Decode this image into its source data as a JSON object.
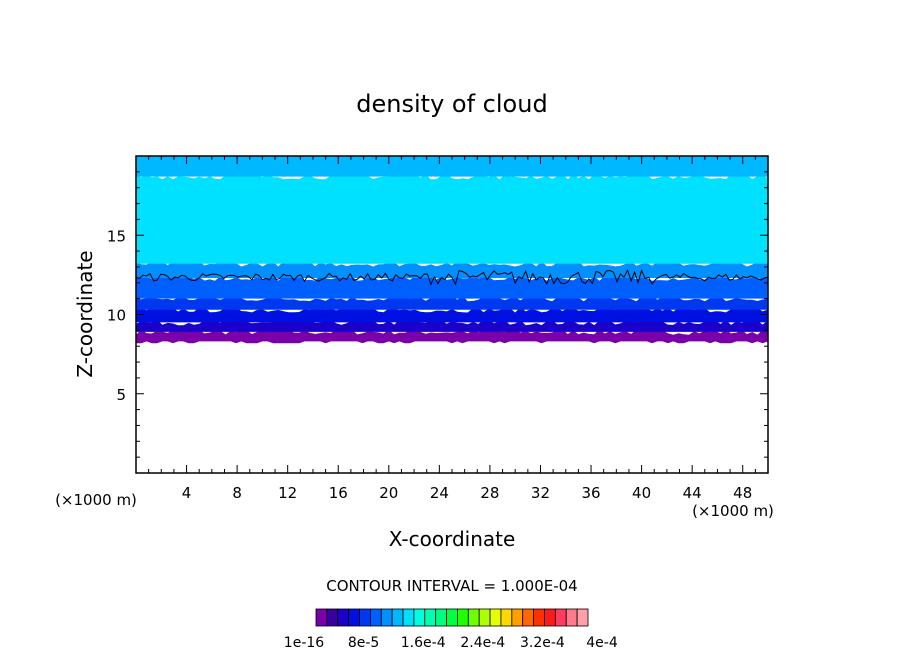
{
  "chart_data": {
    "type": "heatmap",
    "title": "density of cloud",
    "xlabel": "X-coordinate",
    "ylabel": "Z-coordinate",
    "x_unit_label": "(×1000 m)",
    "z_unit_label": "(×1000 m)",
    "xlim": [
      0,
      50
    ],
    "ylim": [
      0,
      20
    ],
    "x_ticks": [
      "4",
      "8",
      "12",
      "16",
      "20",
      "24",
      "28",
      "32",
      "36",
      "40",
      "44",
      "48"
    ],
    "y_ticks": [
      "5",
      "10",
      "15"
    ],
    "contour_interval_text": "CONTOUR INTERVAL = 1.000E-04",
    "colorbar_labels": [
      "1e-16",
      "8e-5",
      "1.6e-4",
      "2.4e-4",
      "3.2e-4",
      "4e-4"
    ],
    "colorbar_colors": [
      "#7a00aa",
      "#3800a0",
      "#1a00c8",
      "#0010e0",
      "#0038f0",
      "#0060ff",
      "#0090ff",
      "#00b8ff",
      "#00e0ff",
      "#00ffe0",
      "#00ffb0",
      "#00ff80",
      "#00ff40",
      "#20ff00",
      "#70ff00",
      "#b0ff00",
      "#e8ff00",
      "#ffd800",
      "#ffa000",
      "#ff6800",
      "#ff3000",
      "#ff1a1a",
      "#ff3c60",
      "#ff7a8a",
      "#ffa0a8"
    ],
    "layers": [
      {
        "z_bottom": 8.3,
        "z_top": 8.9,
        "color": "#7a00aa"
      },
      {
        "z_bottom": 8.9,
        "z_top": 9.5,
        "color": "#1a00c8"
      },
      {
        "z_bottom": 9.5,
        "z_top": 10.3,
        "color": "#0010e0"
      },
      {
        "z_bottom": 10.3,
        "z_top": 11.0,
        "color": "#0038f0"
      },
      {
        "z_bottom": 11.0,
        "z_top": 12.3,
        "color": "#0060ff"
      },
      {
        "z_bottom": 12.3,
        "z_top": 13.2,
        "color": "#0090ff"
      },
      {
        "z_bottom": 13.2,
        "z_top": 18.7,
        "color": "#00e0ff"
      },
      {
        "z_bottom": 18.7,
        "z_top": 20.0,
        "color": "#00b8ff"
      }
    ],
    "contour_level_z": 12.35,
    "grid": false,
    "colorbar_placement": "bottom"
  }
}
